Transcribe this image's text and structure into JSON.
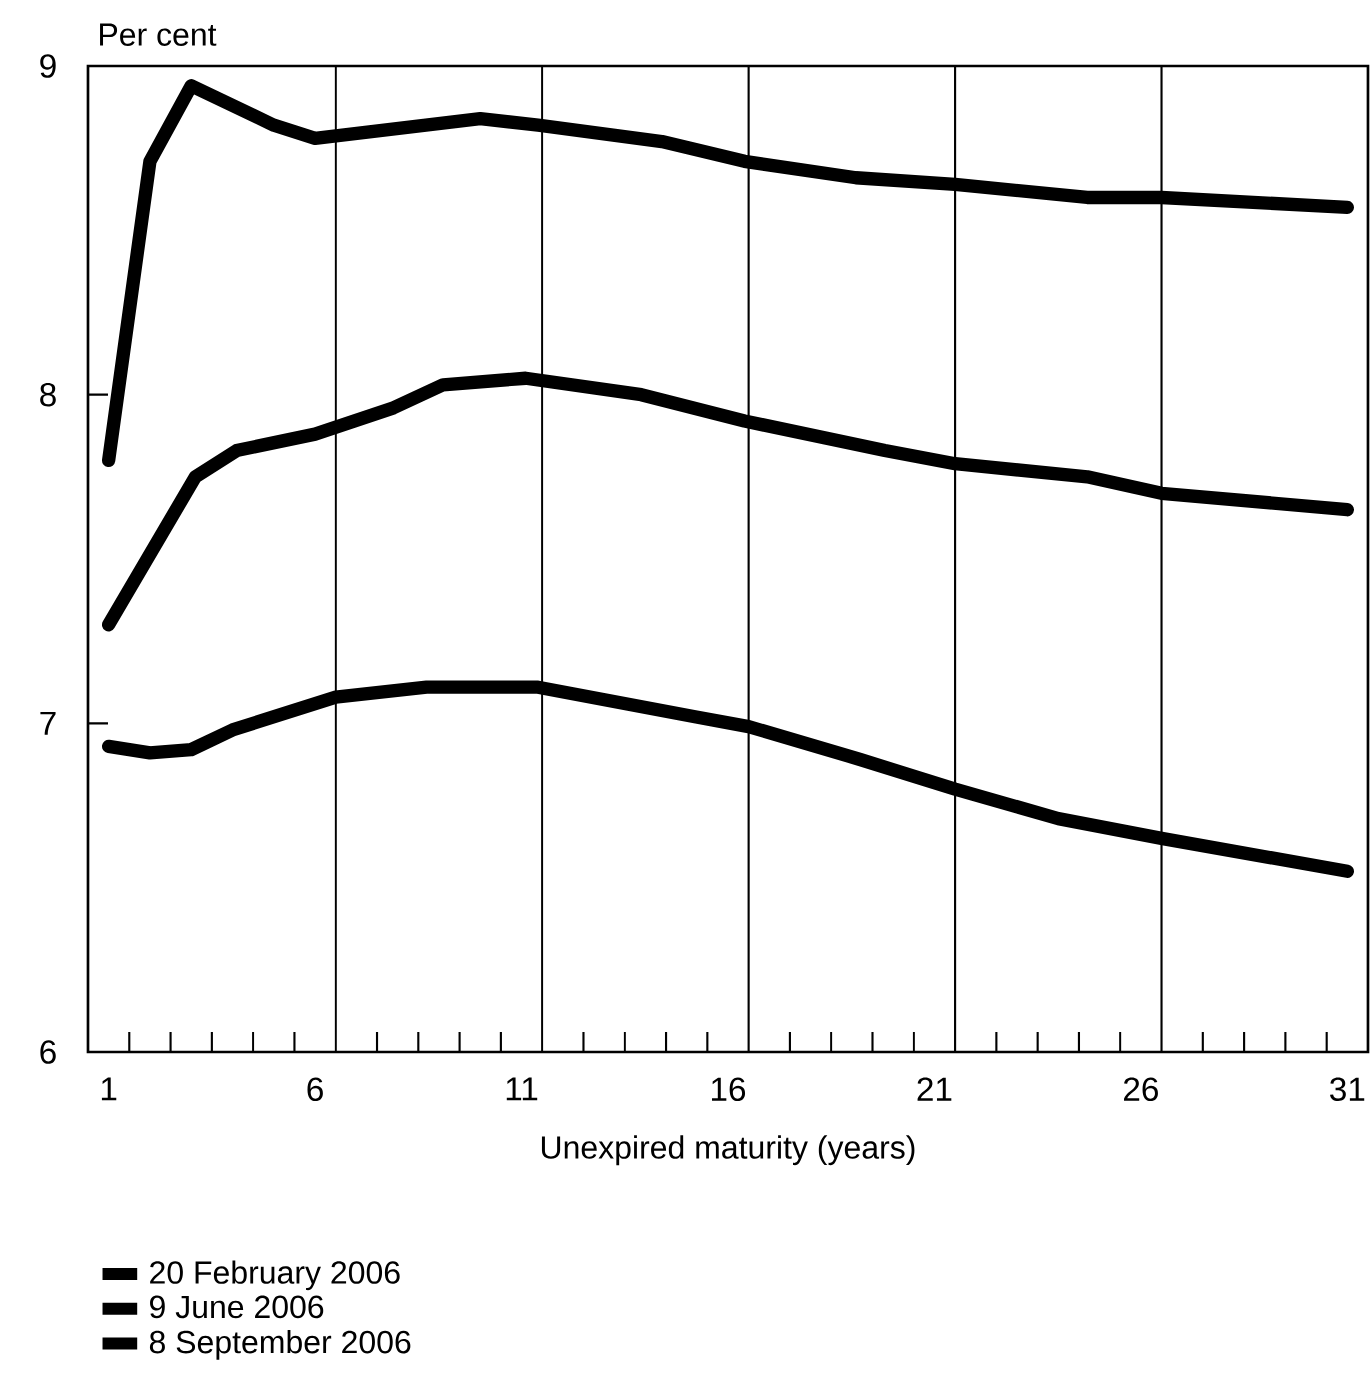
{
  "chart_data": {
    "type": "line",
    "ylabel": "Per cent",
    "xlabel": "Unexpired maturity (years)",
    "xlim": [
      0.5,
      31.5
    ],
    "ylim": [
      6,
      9
    ],
    "xticks": [
      1,
      6,
      11,
      16,
      21,
      26,
      31,
      {
        "value": 1.5,
        "label": null
      },
      {
        "value": 2.5,
        "label": null
      },
      {
        "value": 3.5,
        "label": null
      },
      {
        "value": 4.5,
        "label": null
      },
      {
        "value": 5.5,
        "label": null
      },
      {
        "value": 7.5,
        "label": null
      },
      {
        "value": 8.5,
        "label": null
      },
      {
        "value": 9.5,
        "label": null
      },
      {
        "value": 10.5,
        "label": null
      },
      {
        "value": 12.5,
        "label": null
      },
      {
        "value": 13.5,
        "label": null
      },
      {
        "value": 14.5,
        "label": null
      },
      {
        "value": 15.5,
        "label": null
      },
      {
        "value": 17.5,
        "label": null
      },
      {
        "value": 18.5,
        "label": null
      },
      {
        "value": 19.5,
        "label": null
      },
      {
        "value": 20.5,
        "label": null
      },
      {
        "value": 22.5,
        "label": null
      },
      {
        "value": 23.5,
        "label": null
      },
      {
        "value": 24.5,
        "label": null
      },
      {
        "value": 25.5,
        "label": null
      },
      {
        "value": 27.5,
        "label": null
      },
      {
        "value": 28.5,
        "label": null
      },
      {
        "value": 29.5,
        "label": null
      },
      {
        "value": 30.5,
        "label": null
      }
    ],
    "yticks": [
      6,
      7,
      8,
      9
    ],
    "ref_lines": [
      {
        "axis": "x",
        "value": 6.5,
        "color": "#000000"
      },
      {
        "axis": "x",
        "value": 11.5,
        "color": "#000000"
      },
      {
        "axis": "x",
        "value": 16.5,
        "color": "#000000"
      },
      {
        "axis": "x",
        "value": 21.5,
        "color": "#000000"
      },
      {
        "axis": "x",
        "value": 26.5,
        "color": "#000000"
      }
    ],
    "legend": "bottom left",
    "line_style": "solid",
    "series": [
      {
        "name": "20 February 2006",
        "color": "#000000",
        "x": [
          1,
          2,
          3,
          4,
          6.5,
          8.7,
          11.4,
          15.2,
          16.5,
          19.2,
          21.5,
          24,
          26.5,
          31
        ],
        "values": [
          6.93,
          6.91,
          6.92,
          6.98,
          7.08,
          7.11,
          7.11,
          7.02,
          6.99,
          6.89,
          6.8,
          6.71,
          6.65,
          6.55
        ]
      },
      {
        "name": "9 June 2006",
        "color": "#000000",
        "x": [
          1,
          3.1,
          4.1,
          6,
          7.9,
          9.1,
          11.1,
          13.9,
          16.4,
          19.8,
          21.5,
          24.7,
          26.5,
          31
        ],
        "values": [
          7.3,
          7.75,
          7.83,
          7.88,
          7.96,
          8.03,
          8.05,
          8.0,
          7.92,
          7.83,
          7.79,
          7.75,
          7.7,
          7.65
        ]
      },
      {
        "name": "8 September 2006",
        "color": "#000000",
        "x": [
          1,
          2,
          3,
          4,
          5,
          6,
          10,
          11.4,
          14.4,
          16.4,
          19.1,
          21.5,
          24.7,
          26.5,
          31
        ],
        "values": [
          7.8,
          8.71,
          8.94,
          8.88,
          8.82,
          8.78,
          8.84,
          8.82,
          8.77,
          8.71,
          8.66,
          8.64,
          8.6,
          8.6,
          8.57
        ]
      }
    ]
  }
}
